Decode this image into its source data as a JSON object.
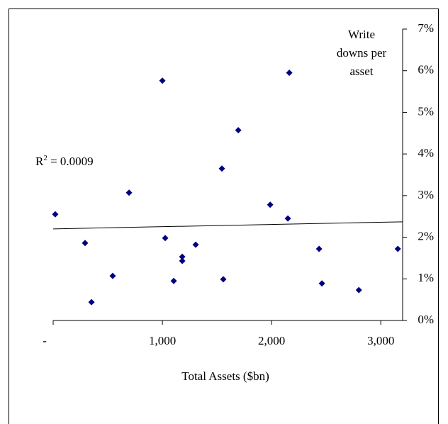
{
  "chart_data": {
    "type": "scatter",
    "y_title_lines": [
      "Write",
      "downs per",
      "asset"
    ],
    "x_title": "Total Assets ($bn)",
    "r_squared": {
      "base": "R",
      "sup": "2",
      "rest": " = 0.0009"
    },
    "color": "#000080",
    "x": [
      19,
      292,
      351,
      545,
      695,
      1000,
      1026,
      1104,
      1182,
      1182,
      1305,
      1545,
      1558,
      1695,
      1987,
      2162,
      2149,
      2435,
      2461,
      2799,
      3156
    ],
    "values": [
      2.55,
      1.86,
      0.44,
      1.07,
      3.07,
      5.76,
      1.98,
      0.95,
      1.53,
      1.43,
      1.82,
      3.65,
      0.99,
      4.57,
      2.78,
      5.95,
      2.45,
      1.72,
      0.89,
      0.73,
      1.72
    ],
    "trendline": {
      "x": [
        0,
        3200
      ],
      "values": [
        2.2,
        2.37
      ]
    },
    "xlim": [
      0,
      3200
    ],
    "xticks": [
      {
        "value": 0,
        "label": "-"
      },
      {
        "value": 1000,
        "label": "1,000"
      },
      {
        "value": 2000,
        "label": "2,000"
      },
      {
        "value": 3000,
        "label": "3,000"
      }
    ],
    "ylim": [
      0,
      7
    ],
    "yticks": [
      {
        "value": 0,
        "label": "0%"
      },
      {
        "value": 1,
        "label": "1%"
      },
      {
        "value": 2,
        "label": "2%"
      },
      {
        "value": 3,
        "label": "3%"
      },
      {
        "value": 4,
        "label": "4%"
      },
      {
        "value": 5,
        "label": "5%"
      },
      {
        "value": 6,
        "label": "6%"
      },
      {
        "value": 7,
        "label": "7%"
      }
    ]
  }
}
